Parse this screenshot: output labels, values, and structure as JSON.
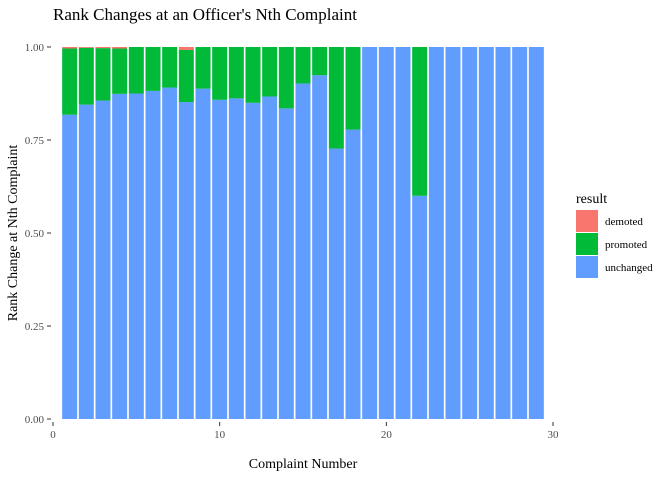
{
  "chart_data": {
    "type": "bar",
    "stacked": true,
    "title": "Rank Changes at an Officer's Nth Complaint",
    "xlabel": "Complaint Number",
    "ylabel": "Rank Change at Nth Complaint",
    "xlim": [
      0,
      30
    ],
    "ylim": [
      0,
      1
    ],
    "x_ticks": [
      0,
      10,
      20,
      30
    ],
    "x_tick_labels": [
      "0",
      "10",
      "20",
      "30"
    ],
    "y_ticks": [
      0,
      0.25,
      0.5,
      0.75,
      1
    ],
    "y_tick_labels": [
      "0.00",
      "0.25",
      "0.50",
      "0.75",
      "1.00"
    ],
    "grid": false,
    "legend": {
      "title": "result",
      "position": "right",
      "entries": [
        {
          "label": "demoted",
          "color": "#F8766D"
        },
        {
          "label": "promoted",
          "color": "#00BA38"
        },
        {
          "label": "unchanged",
          "color": "#619CFF"
        }
      ]
    },
    "x": [
      1,
      2,
      3,
      4,
      5,
      6,
      7,
      8,
      9,
      10,
      11,
      12,
      13,
      14,
      15,
      16,
      17,
      18,
      19,
      20,
      21,
      22,
      23,
      24,
      25,
      26,
      27,
      28,
      29
    ],
    "series": [
      {
        "name": "unchanged",
        "color": "#619CFF",
        "values": [
          0.818,
          0.845,
          0.856,
          0.874,
          0.875,
          0.882,
          0.891,
          0.852,
          0.888,
          0.858,
          0.862,
          0.85,
          0.867,
          0.835,
          0.902,
          0.924,
          0.727,
          0.778,
          1.0,
          1.0,
          1.0,
          0.6,
          1.0,
          1.0,
          1.0,
          1.0,
          1.0,
          1.0,
          1.0
        ]
      },
      {
        "name": "promoted",
        "color": "#00BA38",
        "values": [
          0.178,
          0.153,
          0.141,
          0.122,
          0.125,
          0.118,
          0.109,
          0.14,
          0.112,
          0.142,
          0.138,
          0.15,
          0.133,
          0.165,
          0.098,
          0.076,
          0.273,
          0.222,
          0.0,
          0.0,
          0.0,
          0.4,
          0.0,
          0.0,
          0.0,
          0.0,
          0.0,
          0.0,
          0.0
        ]
      },
      {
        "name": "demoted",
        "color": "#F8766D",
        "values": [
          0.004,
          0.002,
          0.003,
          0.004,
          0.0,
          0.0,
          0.0,
          0.008,
          0.0,
          0.0,
          0.0,
          0.0,
          0.0,
          0.0,
          0.0,
          0.0,
          0.0,
          0.0,
          0.0,
          0.0,
          0.0,
          0.0,
          0.0,
          0.0,
          0.0,
          0.0,
          0.0,
          0.0,
          0.0
        ]
      }
    ]
  }
}
